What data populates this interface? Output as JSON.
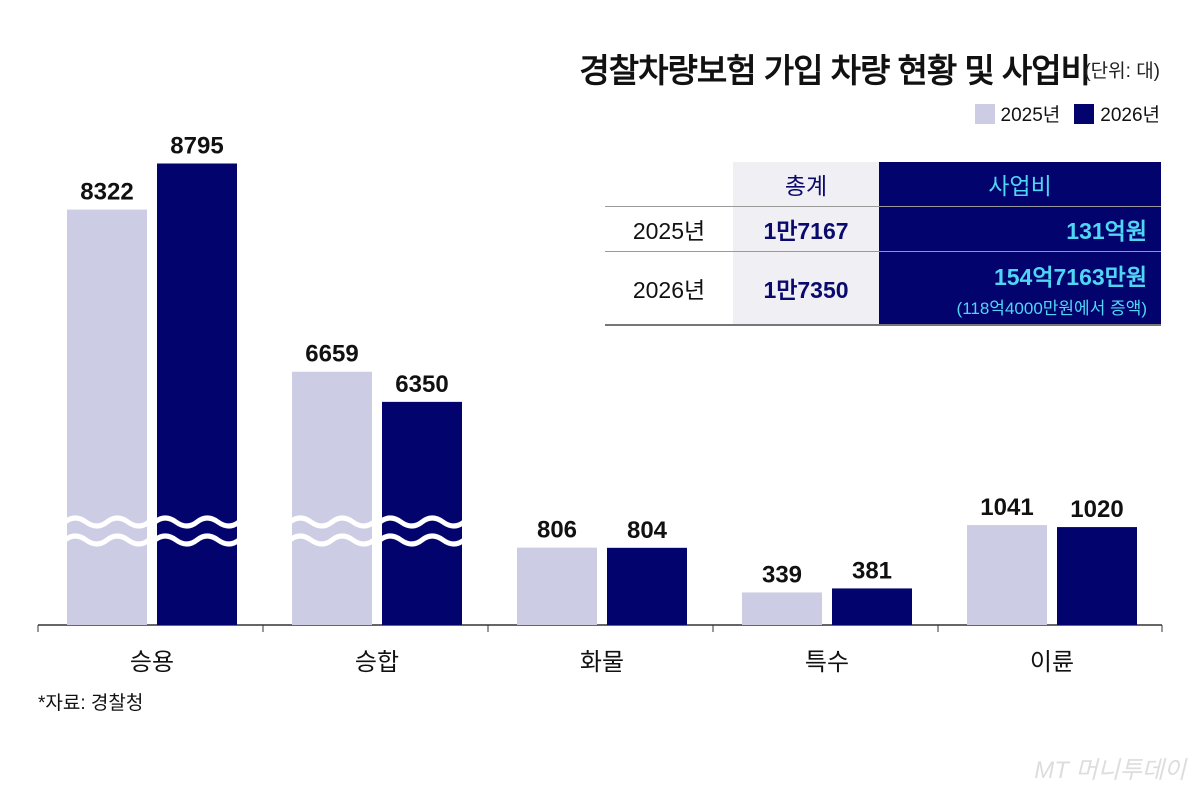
{
  "chart_data": {
    "type": "bar",
    "title": "경찰차량보험 가입 차량 현황 및 사업비",
    "unit": "(단위: 대)",
    "categories": [
      "승용",
      "승합",
      "화물",
      "특수",
      "이륜"
    ],
    "series": [
      {
        "name": "2025년",
        "color": "#cccce4",
        "values": [
          8322,
          6659,
          806,
          339,
          1041
        ]
      },
      {
        "name": "2026년",
        "color": "#03036e",
        "values": [
          8795,
          6350,
          804,
          381,
          1020
        ]
      }
    ],
    "axis_break": true,
    "legend_position": "top-right"
  },
  "table": {
    "headers": [
      "",
      "총계",
      "사업비"
    ],
    "rows": [
      {
        "year": "2025년",
        "total": "1만7167",
        "cost": "131억원",
        "note": ""
      },
      {
        "year": "2026년",
        "total": "1만7350",
        "cost": "154억7163만원",
        "note": "(118억4000만원에서 증액)"
      }
    ]
  },
  "source": "*자료: 경찰청",
  "watermark": "MT 머니투데이"
}
